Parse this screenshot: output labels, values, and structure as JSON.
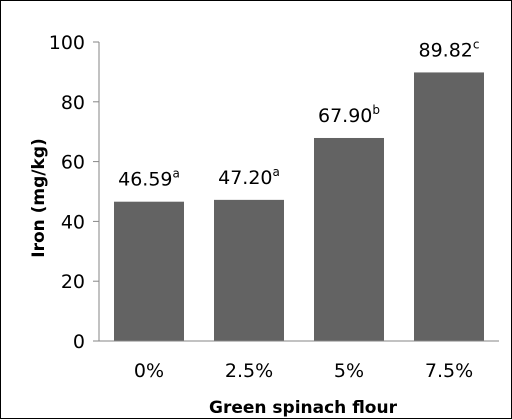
{
  "chart_data": {
    "type": "bar",
    "title": "",
    "xlabel": "Green spinach flour",
    "ylabel": "Iron (mg/kg)",
    "categories": [
      "0%",
      "2.5%",
      "5%",
      "7.5%"
    ],
    "values": [
      46.59,
      47.2,
      67.9,
      89.82
    ],
    "data_labels": [
      "46.59",
      "47.20",
      "67.90",
      "89.82"
    ],
    "superscripts": [
      "a",
      "a",
      "b",
      "c"
    ],
    "ylim": [
      0,
      100
    ],
    "yticks": [
      "0",
      "20",
      "40",
      "60",
      "80",
      "100"
    ],
    "grid": false,
    "legend": "none",
    "bar_color": "#636363"
  }
}
